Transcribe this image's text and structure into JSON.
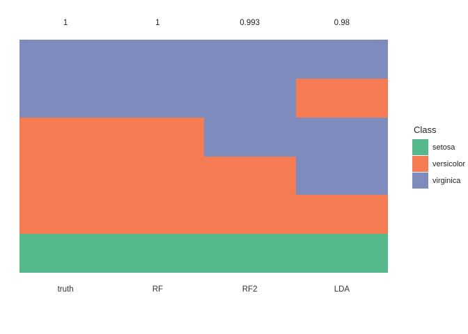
{
  "chart_data": {
    "type": "heatmap",
    "title": "",
    "classes": [
      "setosa",
      "versicolor",
      "virginica"
    ],
    "palette": {
      "setosa": "#55B98C",
      "versicolor": "#F57B53",
      "virginica": "#7D8CBC"
    },
    "legend": {
      "title": "Class",
      "position": "right"
    },
    "axes": {
      "grid": false,
      "y_axis_shown": false,
      "x_labels_shown": true
    },
    "columns": [
      {
        "name": "truth",
        "top_label": "1",
        "segments": [
          {
            "class": "virginica",
            "fraction": 0.333333
          },
          {
            "class": "versicolor",
            "fraction": 0.5
          },
          {
            "class": "setosa",
            "fraction": 0.166667
          }
        ]
      },
      {
        "name": "RF",
        "top_label": "1",
        "segments": [
          {
            "class": "virginica",
            "fraction": 0.333333
          },
          {
            "class": "versicolor",
            "fraction": 0.5
          },
          {
            "class": "setosa",
            "fraction": 0.166667
          }
        ]
      },
      {
        "name": "RF2",
        "top_label": "0.993",
        "segments": [
          {
            "class": "virginica",
            "fraction": 0.5
          },
          {
            "class": "versicolor",
            "fraction": 0.333333
          },
          {
            "class": "setosa",
            "fraction": 0.166667
          }
        ]
      },
      {
        "name": "LDA",
        "top_label": "0.98",
        "segments": [
          {
            "class": "virginica",
            "fraction": 0.166667
          },
          {
            "class": "versicolor",
            "fraction": 0.166667
          },
          {
            "class": "virginica",
            "fraction": 0.333333
          },
          {
            "class": "versicolor",
            "fraction": 0.166667
          },
          {
            "class": "setosa",
            "fraction": 0.166667
          }
        ]
      }
    ]
  }
}
